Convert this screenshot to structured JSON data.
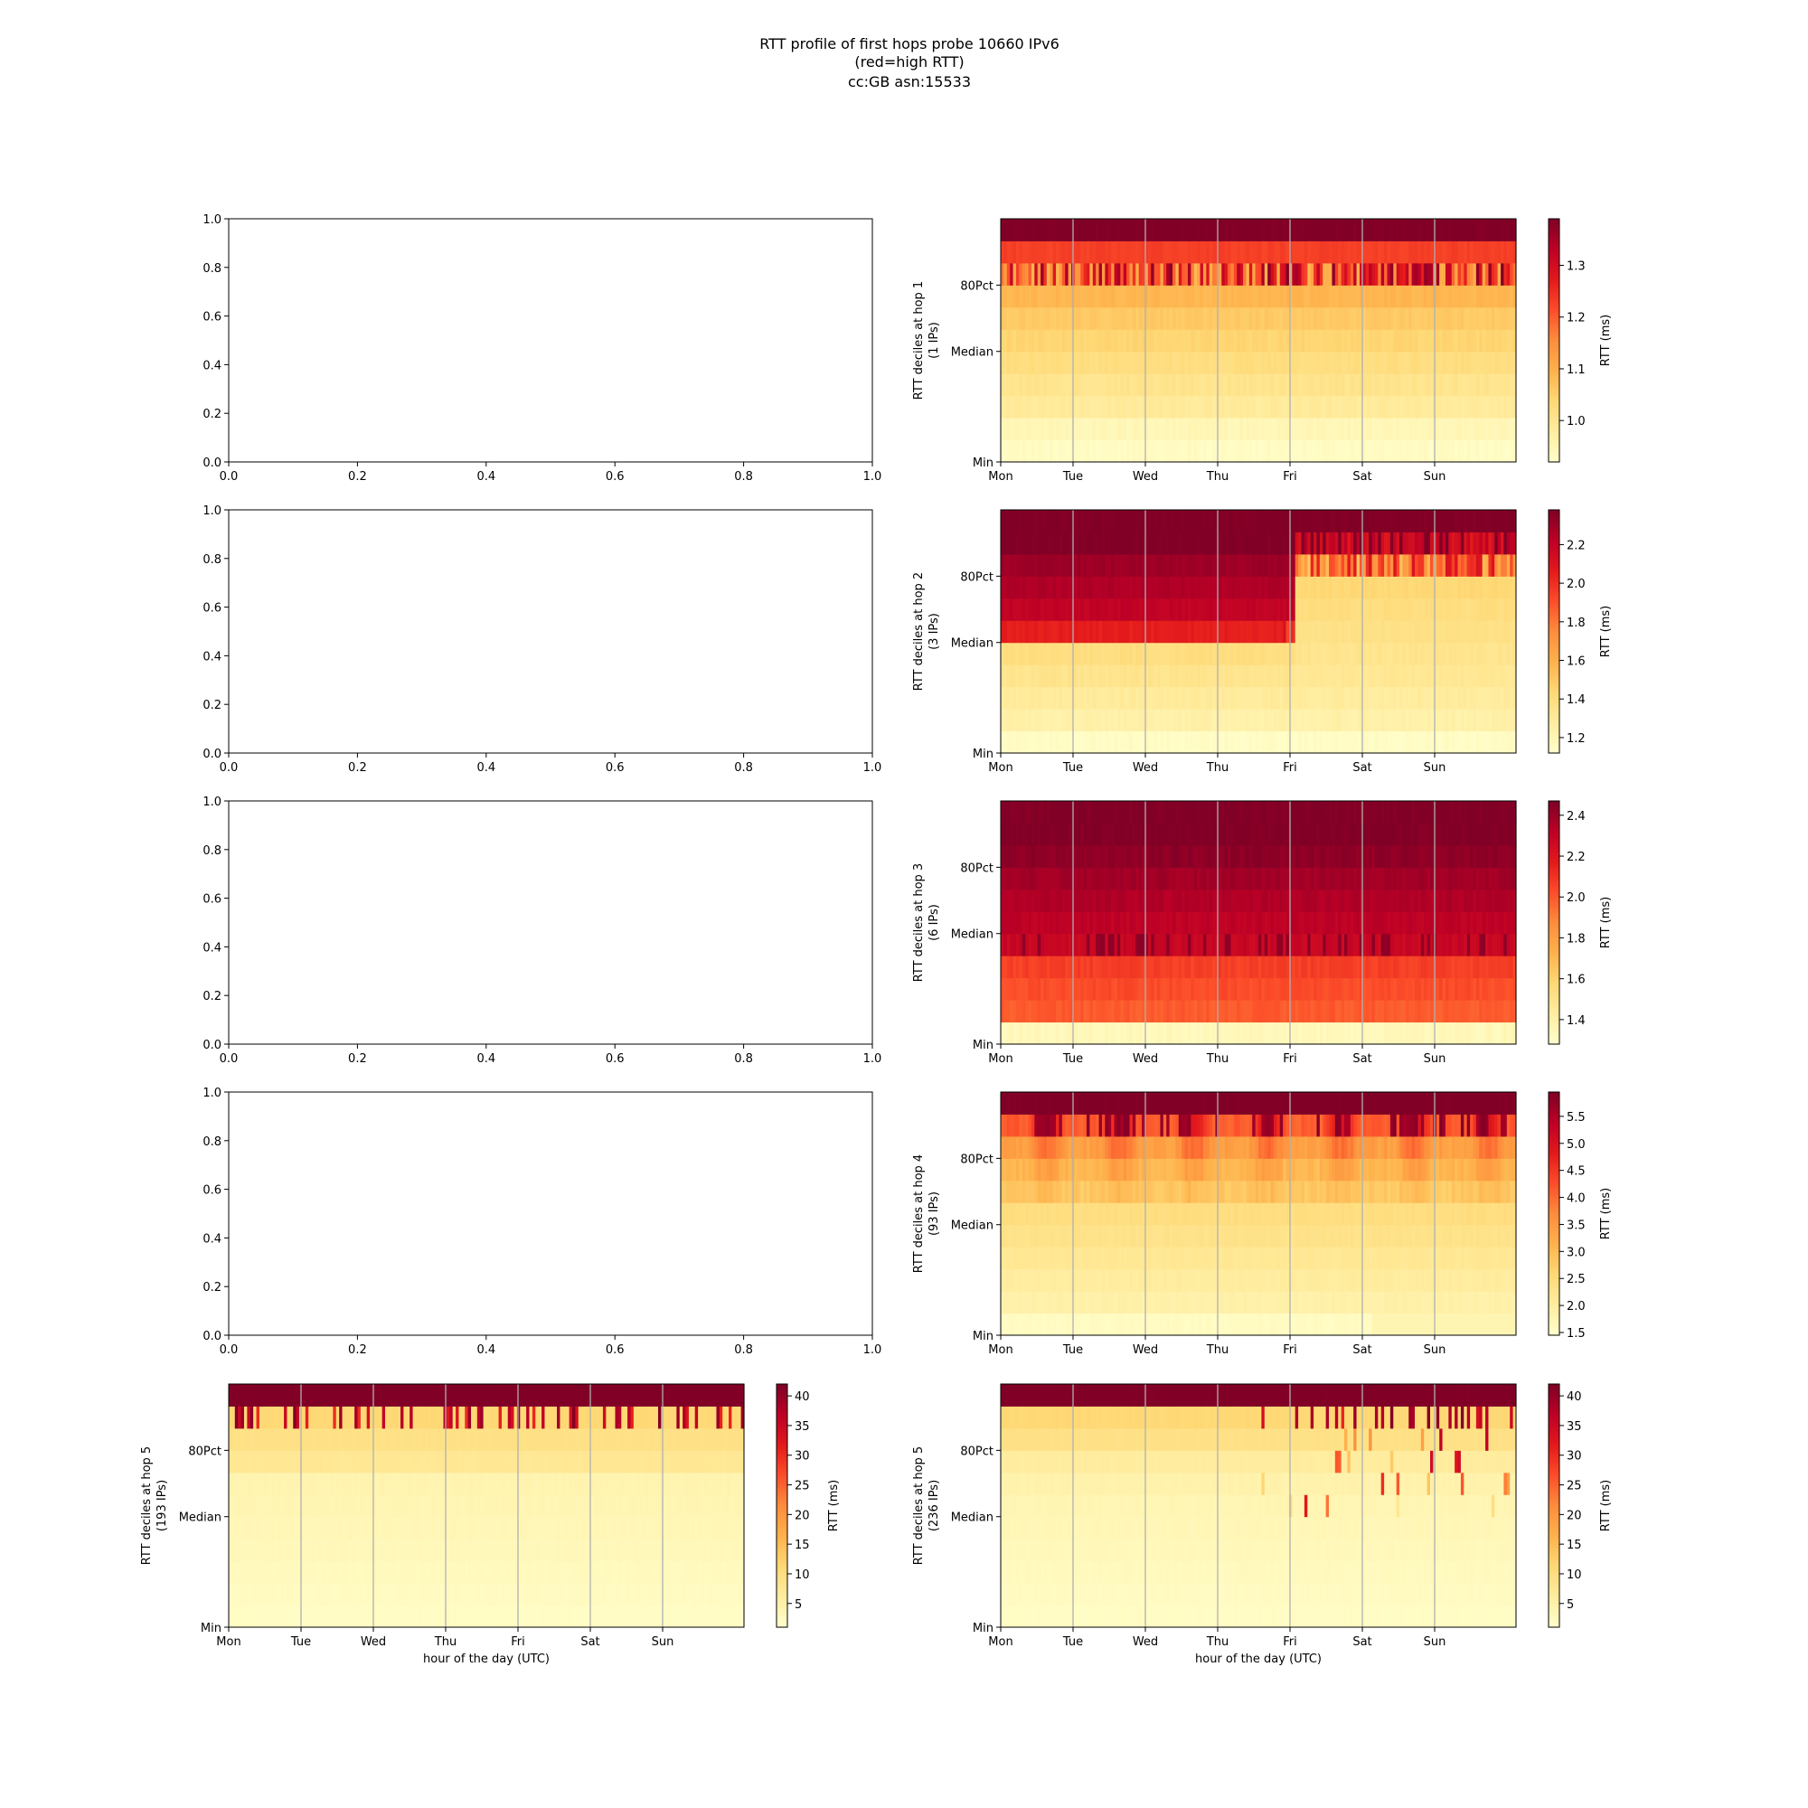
{
  "figure": {
    "title_lines": [
      "RTT profile of first hops probe 10660 IPv6",
      "(red=high RTT)",
      "cc:GB asn:15533"
    ]
  },
  "chart_data": [
    {
      "id": "empty-1",
      "type": "empty",
      "position": "row1-left",
      "xlim": [
        0.0,
        1.0
      ],
      "ylim": [
        0.0,
        1.0
      ],
      "xticks": [
        "0.0",
        "0.2",
        "0.4",
        "0.6",
        "0.8",
        "1.0"
      ],
      "yticks": [
        "0.0",
        "0.2",
        "0.4",
        "0.6",
        "0.8",
        "1.0"
      ]
    },
    {
      "id": "heat-hop1",
      "type": "heatmap",
      "position": "row1-right",
      "pattern": "p1",
      "ylabel": [
        "RTT deciles at hop 1",
        "(1 IPs)"
      ],
      "xlabel": "",
      "xticks": [
        "Mon",
        "Tue",
        "Wed",
        "Thu",
        "Fri",
        "Sat",
        "Sun"
      ],
      "yticks": [
        "Min",
        "Median",
        "80Pct"
      ],
      "colorbar": {
        "label": "RTT (ms)",
        "min": 0.92,
        "max": 1.39,
        "ticks": [
          "1.0",
          "1.1",
          "1.2",
          "1.3"
        ]
      },
      "decile_levels": [
        0.02,
        0.06,
        0.14,
        0.18,
        0.22,
        0.26,
        0.3,
        0.36,
        0.42,
        0.66,
        1.0
      ],
      "colormap": "YlOrRd"
    },
    {
      "id": "empty-2",
      "type": "empty",
      "position": "row2-left",
      "xlim": [
        0.0,
        1.0
      ],
      "ylim": [
        0.0,
        1.0
      ],
      "xticks": [
        "0.0",
        "0.2",
        "0.4",
        "0.6",
        "0.8",
        "1.0"
      ],
      "yticks": [
        "0.0",
        "0.2",
        "0.4",
        "0.6",
        "0.8",
        "1.0"
      ]
    },
    {
      "id": "heat-hop2",
      "type": "heatmap",
      "position": "row2-right",
      "pattern": "p2",
      "ylabel": [
        "RTT deciles at hop 2",
        "(3 IPs)"
      ],
      "xlabel": "",
      "xticks": [
        "Mon",
        "Tue",
        "Wed",
        "Thu",
        "Fri",
        "Sat",
        "Sun"
      ],
      "yticks": [
        "Min",
        "Median",
        "80Pct"
      ],
      "colorbar": {
        "label": "RTT (ms)",
        "min": 1.12,
        "max": 2.38,
        "ticks": [
          "1.2",
          "1.4",
          "1.6",
          "1.8",
          "2.0",
          "2.2"
        ]
      },
      "decile_levels_mon_to_fri": [
        0.02,
        0.1,
        0.14,
        0.18,
        0.22,
        0.74,
        0.86,
        0.9,
        0.94,
        1.0,
        1.0
      ],
      "decile_levels_fri_to_sun": [
        0.02,
        0.1,
        0.13,
        0.16,
        0.18,
        0.2,
        0.22,
        0.25,
        0.45,
        0.92,
        1.0
      ],
      "change_point": "Fri",
      "colormap": "YlOrRd"
    },
    {
      "id": "empty-3",
      "type": "empty",
      "position": "row3-left",
      "xlim": [
        0.0,
        1.0
      ],
      "ylim": [
        0.0,
        1.0
      ],
      "xticks": [
        "0.0",
        "0.2",
        "0.4",
        "0.6",
        "0.8",
        "1.0"
      ],
      "yticks": [
        "0.0",
        "0.2",
        "0.4",
        "0.6",
        "0.8",
        "1.0"
      ]
    },
    {
      "id": "heat-hop3",
      "type": "heatmap",
      "position": "row3-right",
      "pattern": "p3",
      "ylabel": [
        "RTT deciles at hop 3",
        "(6 IPs)"
      ],
      "xlabel": "",
      "xticks": [
        "Mon",
        "Tue",
        "Wed",
        "Thu",
        "Fri",
        "Sat",
        "Sun"
      ],
      "yticks": [
        "Min",
        "Median",
        "80Pct"
      ],
      "colorbar": {
        "label": "RTT (ms)",
        "min": 1.28,
        "max": 2.47,
        "ticks": [
          "1.4",
          "1.6",
          "1.8",
          "2.0",
          "2.2",
          "2.4"
        ]
      },
      "decile_levels": [
        0.05,
        0.6,
        0.63,
        0.66,
        0.84,
        0.87,
        0.9,
        0.93,
        0.97,
        1.0,
        1.0
      ],
      "colormap": "YlOrRd"
    },
    {
      "id": "empty-4",
      "type": "empty",
      "position": "row4-left",
      "xlim": [
        0.0,
        1.0
      ],
      "ylim": [
        0.0,
        1.0
      ],
      "xticks": [
        "0.0",
        "0.2",
        "0.4",
        "0.6",
        "0.8",
        "1.0"
      ],
      "yticks": [
        "0.0",
        "0.2",
        "0.4",
        "0.6",
        "0.8",
        "1.0"
      ]
    },
    {
      "id": "heat-hop4",
      "type": "heatmap",
      "position": "row4-right",
      "pattern": "p4",
      "ylabel": [
        "RTT deciles at hop 4",
        "(93 IPs)"
      ],
      "xlabel": "",
      "xticks": [
        "Mon",
        "Tue",
        "Wed",
        "Thu",
        "Fri",
        "Sat",
        "Sun"
      ],
      "yticks": [
        "Min",
        "Median",
        "80Pct"
      ],
      "colorbar": {
        "label": "RTT (ms)",
        "min": 1.45,
        "max": 5.95,
        "ticks": [
          "1.5",
          "2.0",
          "2.5",
          "3.0",
          "3.5",
          "4.0",
          "4.5",
          "5.0",
          "5.5"
        ]
      },
      "decile_levels": [
        0.03,
        0.1,
        0.13,
        0.16,
        0.19,
        0.22,
        0.26,
        0.3,
        0.36,
        0.5,
        1.0
      ],
      "colormap": "YlOrRd"
    },
    {
      "id": "heat-hop5-left",
      "type": "heatmap",
      "position": "row5-left",
      "pattern": "p5a",
      "ylabel": [
        "RTT deciles at hop 5",
        "(193 IPs)"
      ],
      "xlabel": "hour of the day (UTC)",
      "xticks": [
        "Mon",
        "Tue",
        "Wed",
        "Thu",
        "Fri",
        "Sat",
        "Sun"
      ],
      "yticks": [
        "Min",
        "Median",
        "80Pct"
      ],
      "colorbar": {
        "label": "RTT (ms)",
        "min": 1.0,
        "max": 42.0,
        "ticks": [
          "5",
          "10",
          "15",
          "20",
          "25",
          "30",
          "35",
          "40"
        ]
      },
      "decile_levels": [
        0.02,
        0.03,
        0.04,
        0.05,
        0.06,
        0.07,
        0.08,
        0.16,
        0.2,
        0.25,
        1.0
      ],
      "colormap": "YlOrRd"
    },
    {
      "id": "heat-hop5-right",
      "type": "heatmap",
      "position": "row5-right",
      "pattern": "p5b",
      "ylabel": [
        "RTT deciles at hop 5",
        "(236 IPs)"
      ],
      "xlabel": "hour of the day (UTC)",
      "xticks": [
        "Mon",
        "Tue",
        "Wed",
        "Thu",
        "Fri",
        "Sat",
        "Sun"
      ],
      "yticks": [
        "Min",
        "Median",
        "80Pct"
      ],
      "colorbar": {
        "label": "RTT (ms)",
        "min": 1.0,
        "max": 42.0,
        "ticks": [
          "5",
          "10",
          "15",
          "20",
          "25",
          "30",
          "35",
          "40"
        ]
      },
      "decile_levels": [
        0.02,
        0.03,
        0.04,
        0.05,
        0.06,
        0.07,
        0.09,
        0.13,
        0.2,
        0.25,
        1.0
      ],
      "colormap": "YlOrRd"
    }
  ]
}
